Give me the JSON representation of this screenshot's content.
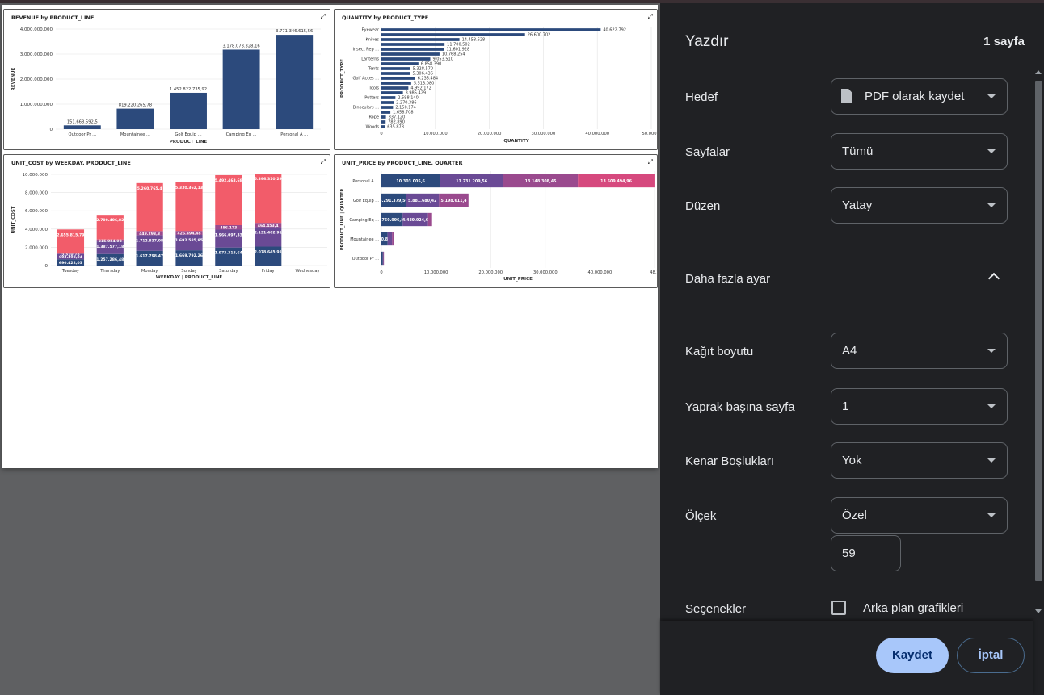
{
  "print_dialog": {
    "title": "Yazdır",
    "page_count": "1 sayfa",
    "destination_label": "Hedef",
    "destination_value": "PDF olarak kaydet",
    "pages_label": "Sayfalar",
    "pages_value": "Tümü",
    "layout_label": "Düzen",
    "layout_value": "Yatay",
    "more_settings_label": "Daha fazla ayar",
    "paper_size_label": "Kağıt boyutu",
    "paper_size_value": "A4",
    "pages_per_sheet_label": "Yaprak başına sayfa",
    "pages_per_sheet_value": "1",
    "margins_label": "Kenar Boşlukları",
    "margins_value": "Yok",
    "scale_label": "Ölçek",
    "scale_value": "Özel",
    "scale_custom_value": "59",
    "options_label": "Seçenekler",
    "background_graphics_label": "Arka plan grafikleri",
    "background_graphics_checked": false,
    "save_button": "Kaydet",
    "cancel_button": "İptal"
  },
  "colors": {
    "navy": "#2c4a7c",
    "purple": "#6a4a95",
    "magenta": "#9a4a8e",
    "pink": "#d6497e",
    "coral": "#f25c6a",
    "dialog_bg": "#202124",
    "save_button_bg": "#a8c7fa"
  },
  "chart_data": [
    {
      "type": "bar",
      "title": "REVENUE by PRODUCT_LINE",
      "xlabel": "PRODUCT_LINE",
      "ylabel": "REVENUE",
      "categories": [
        "Outdoor Pr ...",
        "Mountainee ...",
        "Golf Equip ...",
        "Camping Eq ...",
        "Personal A ..."
      ],
      "values": [
        151668592.5,
        819220265.78,
        1452822735.92,
        3178073328.16,
        3771346615.56
      ],
      "value_labels": [
        "151.668.592,5",
        "819.220.265,78",
        "1.452.822.735,92",
        "3.178.073.328,16",
        "3.771.346.615,56"
      ],
      "yticks": [
        "4.000.000.000",
        "3.000.000.000",
        "2.000.000.000",
        "1.000.000.000",
        "0"
      ],
      "ylim": [
        0,
        4000000000
      ]
    },
    {
      "type": "bar",
      "orientation": "horizontal",
      "title": "QUANTITY by PRODUCT_TYPE",
      "xlabel": "QUANTITY",
      "ylabel": "PRODUCT_TYPE",
      "categories": [
        "Eyewear",
        "",
        "Knives",
        "",
        "Insect Rep ...",
        "",
        "Lanterns",
        "",
        "Tents",
        "",
        "Golf Acces ...",
        "",
        "Tools",
        "",
        "Putters",
        "",
        "Binoculars ...",
        "",
        "Rope",
        "",
        "Woods"
      ],
      "values": [
        40622792,
        26600702,
        14458628,
        11700502,
        11601928,
        10768254,
        9053510,
        6858390,
        5328570,
        5306436,
        6235484,
        5513080,
        4992172,
        3985429,
        2598140,
        2270386,
        2150174,
        1658708,
        837120,
        782890,
        635878
      ],
      "value_labels": [
        "40.622.792",
        "26.600.702",
        "14.458.628",
        "11.700.502",
        "11.601.928",
        "10.768.254",
        "9.053.510",
        "6.858.390",
        "5.328.570",
        "5.306.436",
        "6.235.484",
        "5.513.080",
        "4.992.172",
        "3.985.429",
        "2.598.140",
        "2.270.386",
        "2.150.174",
        "1.658.708",
        "837.120",
        "782.890",
        "635.878"
      ],
      "xticks": [
        "0",
        "10.000.000",
        "20.000.000",
        "30.000.000",
        "40.000.000",
        "50.000.0"
      ],
      "xlim": [
        0,
        50000000
      ]
    },
    {
      "type": "bar",
      "stacked": true,
      "title": "UNIT_COST by WEEKDAY, PRODUCT_LINE",
      "xlabel": "WEEKDAY | PRODUCT_LINE",
      "ylabel": "UNIT_COST",
      "categories": [
        "Tuesday",
        "Thursday",
        "Monday",
        "Sunday",
        "Saturday",
        "Friday",
        "Wednesday"
      ],
      "series": [
        {
          "values": [
            690422.03,
            1257286.48,
            1617798.47,
            1669792.26,
            1973318.64,
            2078645.91,
            0
          ],
          "labels": [
            "690.422,03",
            "1.257.286,48",
            "1.617.798,47",
            "1.669.792,26",
            "1.973.318,64",
            "2.078.645,91",
            ""
          ]
        },
        {
          "values": [
            603393.04,
            1387577.18,
            1712837.08,
            1692585.95,
            1966097.33,
            2131462.91,
            0
          ],
          "labels": [
            "603.393,04",
            "1.387.577,18",
            "1.712.837,08",
            "1.692.585,95",
            "1.966.097,33",
            "2.131.462,91",
            ""
          ]
        },
        {
          "values": [
            5310.78,
            215954.92,
            449293.3,
            426494.48,
            486173,
            464453.4,
            0
          ],
          "labels": [
            "5.310,78",
            "215.954,92",
            "449.293,3",
            "426.494,48",
            "486.173",
            "464.453,4",
            ""
          ]
        },
        {
          "values": [
            2655815.79,
            2700406.82,
            5260765.4,
            5330362.13,
            5492463.68,
            5396310.29,
            0
          ],
          "labels": [
            "2.655.815,79",
            "2.700.406,82",
            "5.260.765,4",
            "5.330.362,13",
            "5.492.463,68",
            "5.396.310,29",
            ""
          ]
        }
      ],
      "yticks": [
        "10.000.000",
        "8.000.000",
        "6.000.000",
        "4.000.000",
        "2.000.000",
        "0"
      ],
      "ylim": [
        0,
        10000000
      ]
    },
    {
      "type": "bar",
      "orientation": "horizontal",
      "stacked": true,
      "title": "UNIT_PRICE by PRODUCT_LINE, QUARTER",
      "xlabel": "UNIT_PRICE",
      "ylabel": "PRODUCT_LINE | QUARTER",
      "categories": [
        "Personal A ...",
        "Golf Equip ...",
        "Camping Eq ...",
        "Mountainee ...",
        "Outdoor Pr ..."
      ],
      "series": [
        {
          "values": [
            10303005.6,
            4291379.56,
            3750996.82,
            1090873.7,
            250000
          ],
          "labels": [
            "10.303.005,6",
            "4.291.379,56",
            "3.750.996,82",
            "1.090.873,7",
            ""
          ]
        },
        {
          "values": [
            11231209.56,
            5881680.42,
            4489924.6,
            800000,
            120000
          ],
          "labels": [
            "11.231.209,56",
            "5.881.680,42",
            "4.489.924,6",
            "",
            ""
          ]
        },
        {
          "values": [
            13148308.45,
            5198611.4,
            700000,
            300000,
            80000
          ],
          "labels": [
            "13.148.308,45",
            "5.198.611,4",
            "",
            "",
            ""
          ]
        },
        {
          "values": [
            13509494.96,
            0,
            0,
            0,
            0
          ],
          "labels": [
            "13.509.494,96",
            "",
            "",
            "",
            ""
          ]
        }
      ],
      "xticks": [
        "0",
        "10.000.000",
        "20.000.000",
        "30.000.000",
        "40.000.000",
        "48.2"
      ],
      "xlim": [
        0,
        48200000
      ]
    }
  ]
}
